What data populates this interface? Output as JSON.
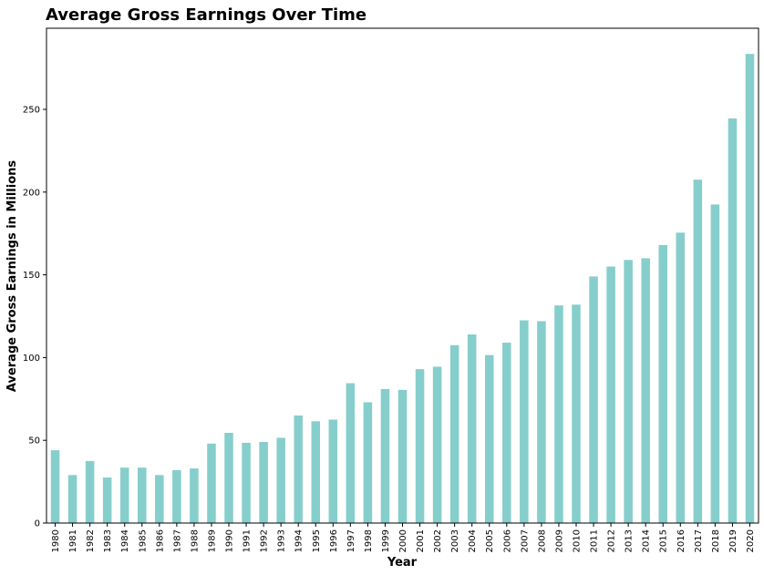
{
  "chart_data": {
    "type": "bar",
    "title": "Average Gross Earnings Over Time",
    "xlabel": "Year",
    "ylabel": "Average Gross Earnings in Millions",
    "ylim": [
      0,
      299
    ],
    "yticks": [
      0,
      50,
      100,
      150,
      200,
      250
    ],
    "grid": false,
    "bar_color": "#86cecb",
    "categories": [
      "1980",
      "1981",
      "1982",
      "1983",
      "1984",
      "1985",
      "1986",
      "1987",
      "1988",
      "1989",
      "1990",
      "1991",
      "1992",
      "1993",
      "1994",
      "1995",
      "1996",
      "1997",
      "1998",
      "1999",
      "2000",
      "2001",
      "2002",
      "2003",
      "2004",
      "2005",
      "2006",
      "2007",
      "2008",
      "2009",
      "2010",
      "2011",
      "2012",
      "2013",
      "2014",
      "2015",
      "2016",
      "2017",
      "2018",
      "2019",
      "2020"
    ],
    "values": [
      44,
      29,
      37.5,
      27.5,
      33.5,
      33.5,
      29,
      32,
      33,
      48,
      54.5,
      48.5,
      49,
      51.5,
      65,
      61.5,
      62.5,
      84.5,
      73,
      81,
      80.5,
      93,
      94.5,
      107.5,
      114,
      101.5,
      109,
      122.5,
      122,
      131.5,
      132,
      149,
      155,
      159,
      160,
      168,
      175.5,
      207.5,
      192.5,
      244.5,
      283.5
    ]
  }
}
